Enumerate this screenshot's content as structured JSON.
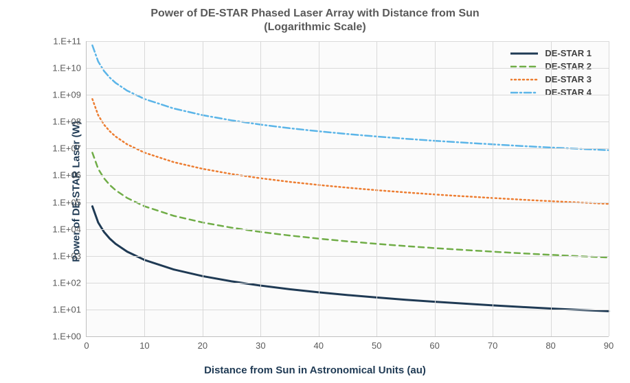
{
  "chart": {
    "type": "line-log-y",
    "title_line1": "Power of DE-STAR Phased Laser Array with Distance from Sun",
    "title_line2": "(Logarithmic Scale)",
    "title_color": "#595959",
    "title_fontsize_pt": 12,
    "background_color": "#ffffff",
    "plot_background_color": "#fbfbfb",
    "grid_color": "#d9d9d9",
    "axis_line_color": "#bfbfbf",
    "tick_label_color": "#595959",
    "tick_label_fontsize_pt": 10,
    "axis_title_color": "#1f3a54",
    "axis_title_fontsize_pt": 11,
    "x_axis": {
      "label": "Distance from Sun in Astronomical Units (au)",
      "min": 0,
      "max": 90,
      "tick_step": 10,
      "ticks": [
        0,
        10,
        20,
        30,
        40,
        50,
        60,
        70,
        80,
        90
      ],
      "scale": "linear"
    },
    "y_axis": {
      "label": "Power of DE-STAR Laser (W)",
      "min_exp": 0,
      "max_exp": 11,
      "ticks_labels": [
        "1.E+00",
        "1.E+01",
        "1.E+02",
        "1.E+03",
        "1.E+04",
        "1.E+05",
        "1.E+06",
        "1.E+07",
        "1.E+08",
        "1.E+09",
        "1.E+10",
        "1.E+11"
      ],
      "scale": "log"
    },
    "series": [
      {
        "name": "DE-STAR 1",
        "color": "#1f3a54",
        "line_width": 3,
        "dash": "solid",
        "data": [
          {
            "x": 1,
            "y": 70000.0
          },
          {
            "x": 2,
            "y": 17500.0
          },
          {
            "x": 3,
            "y": 7780.0
          },
          {
            "x": 4,
            "y": 4380.0
          },
          {
            "x": 5,
            "y": 2800.0
          },
          {
            "x": 7,
            "y": 1430.0
          },
          {
            "x": 10,
            "y": 700.0
          },
          {
            "x": 15,
            "y": 311.0
          },
          {
            "x": 20,
            "y": 175.0
          },
          {
            "x": 25,
            "y": 112.0
          },
          {
            "x": 30,
            "y": 77.8
          },
          {
            "x": 35,
            "y": 57.1
          },
          {
            "x": 40,
            "y": 43.8
          },
          {
            "x": 45,
            "y": 34.6
          },
          {
            "x": 50,
            "y": 28.0
          },
          {
            "x": 55,
            "y": 23.1
          },
          {
            "x": 60,
            "y": 19.4
          },
          {
            "x": 65,
            "y": 16.6
          },
          {
            "x": 70,
            "y": 14.3
          },
          {
            "x": 75,
            "y": 12.4
          },
          {
            "x": 80,
            "y": 10.9
          },
          {
            "x": 85,
            "y": 9.69
          },
          {
            "x": 90,
            "y": 8.64
          }
        ]
      },
      {
        "name": "DE-STAR 2",
        "color": "#70ad47",
        "line_width": 2.5,
        "dash": "8 6",
        "data": [
          {
            "x": 1,
            "y": 7000000.0
          },
          {
            "x": 2,
            "y": 1750000.0
          },
          {
            "x": 3,
            "y": 778000.0
          },
          {
            "x": 4,
            "y": 438000.0
          },
          {
            "x": 5,
            "y": 280000.0
          },
          {
            "x": 7,
            "y": 143000.0
          },
          {
            "x": 10,
            "y": 70000.0
          },
          {
            "x": 15,
            "y": 31100.0
          },
          {
            "x": 20,
            "y": 17500.0
          },
          {
            "x": 25,
            "y": 11200.0
          },
          {
            "x": 30,
            "y": 7780.0
          },
          {
            "x": 35,
            "y": 5710.0
          },
          {
            "x": 40,
            "y": 4380.0
          },
          {
            "x": 45,
            "y": 3460.0
          },
          {
            "x": 50,
            "y": 2800.0
          },
          {
            "x": 55,
            "y": 2310.0
          },
          {
            "x": 60,
            "y": 1940.0
          },
          {
            "x": 65,
            "y": 1660.0
          },
          {
            "x": 70,
            "y": 1430.0
          },
          {
            "x": 75,
            "y": 1240.0
          },
          {
            "x": 80,
            "y": 1090.0
          },
          {
            "x": 85,
            "y": 969.0
          },
          {
            "x": 90,
            "y": 864.0
          }
        ]
      },
      {
        "name": "DE-STAR 3",
        "color": "#ed7d31",
        "line_width": 2.5,
        "dash": "2 4",
        "data": [
          {
            "x": 1,
            "y": 700000000.0
          },
          {
            "x": 2,
            "y": 175000000.0
          },
          {
            "x": 3,
            "y": 77800000.0
          },
          {
            "x": 4,
            "y": 43800000.0
          },
          {
            "x": 5,
            "y": 28000000.0
          },
          {
            "x": 7,
            "y": 14300000.0
          },
          {
            "x": 10,
            "y": 7000000.0
          },
          {
            "x": 15,
            "y": 3110000.0
          },
          {
            "x": 20,
            "y": 1750000.0
          },
          {
            "x": 25,
            "y": 1120000.0
          },
          {
            "x": 30,
            "y": 778000.0
          },
          {
            "x": 35,
            "y": 571000.0
          },
          {
            "x": 40,
            "y": 438000.0
          },
          {
            "x": 45,
            "y": 346000.0
          },
          {
            "x": 50,
            "y": 280000.0
          },
          {
            "x": 55,
            "y": 231000.0
          },
          {
            "x": 60,
            "y": 194000.0
          },
          {
            "x": 65,
            "y": 166000.0
          },
          {
            "x": 70,
            "y": 143000.0
          },
          {
            "x": 75,
            "y": 124000.0
          },
          {
            "x": 80,
            "y": 109000.0
          },
          {
            "x": 85,
            "y": 96900.0
          },
          {
            "x": 90,
            "y": 86400.0
          }
        ]
      },
      {
        "name": "DE-STAR 4",
        "color": "#5bb5e8",
        "line_width": 2.5,
        "dash": "10 4 2 4",
        "data": [
          {
            "x": 1,
            "y": 70000000000.0
          },
          {
            "x": 2,
            "y": 17500000000.0
          },
          {
            "x": 3,
            "y": 7780000000.0
          },
          {
            "x": 4,
            "y": 4380000000.0
          },
          {
            "x": 5,
            "y": 2800000000.0
          },
          {
            "x": 7,
            "y": 1430000000.0
          },
          {
            "x": 10,
            "y": 700000000.0
          },
          {
            "x": 15,
            "y": 311000000.0
          },
          {
            "x": 20,
            "y": 175000000.0
          },
          {
            "x": 25,
            "y": 112000000.0
          },
          {
            "x": 30,
            "y": 77800000.0
          },
          {
            "x": 35,
            "y": 57100000.0
          },
          {
            "x": 40,
            "y": 43800000.0
          },
          {
            "x": 45,
            "y": 34600000.0
          },
          {
            "x": 50,
            "y": 28000000.0
          },
          {
            "x": 55,
            "y": 23100000.0
          },
          {
            "x": 60,
            "y": 19400000.0
          },
          {
            "x": 65,
            "y": 16600000.0
          },
          {
            "x": 70,
            "y": 14300000.0
          },
          {
            "x": 75,
            "y": 12400000.0
          },
          {
            "x": 80,
            "y": 10900000.0
          },
          {
            "x": 85,
            "y": 9690000.0
          },
          {
            "x": 90,
            "y": 8640000.0
          }
        ]
      }
    ],
    "legend": {
      "position": "top-right-inside",
      "font_weight": "bold",
      "entries": [
        {
          "label": "DE-STAR 1",
          "color": "#1f3a54",
          "dash": "solid",
          "width": 3
        },
        {
          "label": "DE-STAR 2",
          "color": "#70ad47",
          "dash": "8 6",
          "width": 2.5
        },
        {
          "label": "DE-STAR 3",
          "color": "#ed7d31",
          "dash": "2 4",
          "width": 2.5
        },
        {
          "label": "DE-STAR 4",
          "color": "#5bb5e8",
          "dash": "10 4 2 4",
          "width": 2.5
        }
      ]
    }
  }
}
